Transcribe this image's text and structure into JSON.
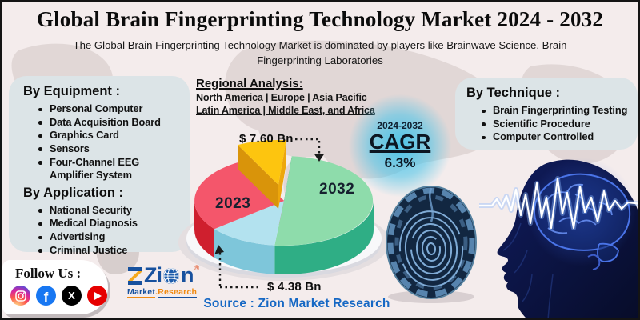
{
  "header": {
    "title": "Global Brain Fingerprinting Technology Market 2024 - 2032",
    "subtitle": "The Global Brain Fingerprinting Technology Market is dominated by players like Brainwave Science, Brain Fingerprinting Laboratories"
  },
  "panels": {
    "equipment": {
      "heading": "By Equipment :",
      "items": [
        "Personal Computer",
        "Data Acquisition Board",
        "Graphics Card",
        "Sensors",
        "Four-Channel EEG Amplifier System"
      ]
    },
    "application": {
      "heading": "By Application :",
      "items": [
        "National Security",
        "Medical Diagnosis",
        "Advertising",
        "Criminal Justice"
      ]
    },
    "technique": {
      "heading": "By Technique :",
      "items": [
        "Brain Fingerprinting Testing",
        "Scientific Procedure",
        "Computer Controlled"
      ]
    }
  },
  "regional": {
    "heading": "Regional Analysis:",
    "line1": "North America | Europe | Asia Pacific",
    "line2": "Latin America | Middle East, and Africa"
  },
  "cagr": {
    "period": "2024-2032",
    "label": "CAGR",
    "value": "6.3%"
  },
  "chart_data": {
    "type": "pie",
    "title": "Global Brain Fingerprinting Technology Market 2024 - 2032",
    "unit": "USD Billion",
    "style": "3d-exploded",
    "slices": [
      {
        "label": "2032",
        "value_bn": 7.6,
        "annotation": "$ 7.60 Bn",
        "color": "#8edcab",
        "side_color": "#2fae85",
        "approx_angle_deg": 181,
        "exploded": false
      },
      {
        "label": "",
        "value_bn": null,
        "annotation": "",
        "color": "#b3e2ef",
        "side_color": "#7ec6da",
        "approx_angle_deg": 45,
        "exploded": false
      },
      {
        "label": "2023",
        "value_bn": 4.38,
        "annotation": "$ 4.38 Bn",
        "color": "#f4566b",
        "side_color": "#cf1f2e",
        "approx_angle_deg": 102,
        "exploded": false
      },
      {
        "label": "",
        "value_bn": null,
        "annotation": "",
        "color": "#fdc50f",
        "side_color": "#d9940a",
        "approx_angle_deg": 32,
        "exploded": true
      }
    ],
    "cagr": {
      "period": "2024-2032",
      "value": "6.3%"
    },
    "legend_position": "none",
    "annotations_linked_by": "dotted-arrows"
  },
  "source": "Source : Zion Market Research",
  "follow": {
    "label": "Follow Us :",
    "icons": [
      "instagram",
      "facebook",
      "x-twitter",
      "youtube"
    ]
  },
  "logo": {
    "brand_head": "Zi",
    "brand_tail": "n",
    "reg": "®",
    "sub_blue": "Market",
    "sub_dot": ".",
    "sub_orange": "Research"
  },
  "colors": {
    "background": "#f4ecec",
    "map": "#d9cecd",
    "panel": "#dce4e7",
    "source_blue": "#1668c4",
    "cagr_glow": "#46c3e8",
    "head_navy": "#0b1340",
    "brain_blue": "#4a74e8"
  }
}
